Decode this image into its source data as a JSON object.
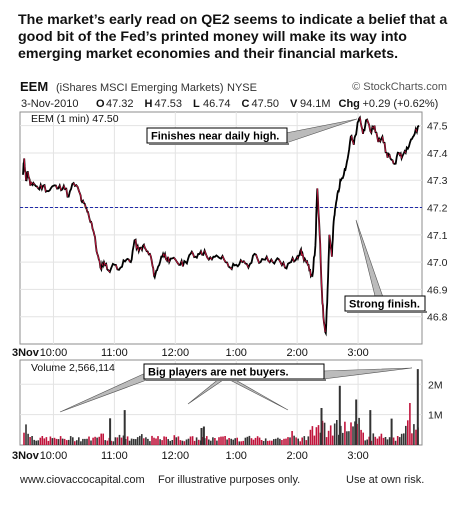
{
  "headline": "The market’s early read on QE2 seems to indicate a belief that a good bit of the Fed’s printed money will make its way into emerging market economies and their financial markets.",
  "chart_data": {
    "type": "line",
    "symbol": "EEM",
    "symbol_desc": "(iShares MSCI Emerging Markets)",
    "exchange": "NYSE",
    "watermark": "© StockCharts.com",
    "date": "3-Nov-2010",
    "ohlc": [
      {
        "k": "O",
        "v": "47.32"
      },
      {
        "k": "H",
        "v": "47.53"
      },
      {
        "k": "L",
        "v": "46.74"
      },
      {
        "k": "C",
        "v": "47.50"
      },
      {
        "k": "V",
        "v": "94.1M"
      },
      {
        "k": "Chg",
        "v": "+0.29 (+0.62%)"
      }
    ],
    "legend_label": "EEM (1 min) 47.50",
    "volume_label": "Volume 2,566,114",
    "price_ylim": [
      46.7,
      47.55
    ],
    "price_ticks": [
      "47.5",
      "47.4",
      "47.3",
      "47.2",
      "47.1",
      "47.0",
      "46.9",
      "46.8"
    ],
    "price_tick_values": [
      47.5,
      47.4,
      47.3,
      47.2,
      47.1,
      47.0,
      46.9,
      46.8
    ],
    "reference_level": 47.2,
    "volume_ticks": [
      "2M",
      "1M"
    ],
    "volume_tick_values": [
      2000000,
      1000000
    ],
    "volume_max": 2800000,
    "time_labels": [
      "3Nov",
      "10:00",
      "11:00",
      "12:00",
      "1:00",
      "2:00",
      "3:00"
    ],
    "time_label_hours": [
      9.5,
      10,
      11,
      12,
      13,
      14,
      15
    ],
    "x_range_hours": [
      9.5,
      16
    ],
    "price_path": [
      [
        9.5,
        47.32
      ],
      [
        9.52,
        47.38
      ],
      [
        9.55,
        47.3
      ],
      [
        9.58,
        47.33
      ],
      [
        9.62,
        47.28
      ],
      [
        9.67,
        47.29
      ],
      [
        9.75,
        47.27
      ],
      [
        9.83,
        47.28
      ],
      [
        9.92,
        47.26
      ],
      [
        10.0,
        47.28
      ],
      [
        10.08,
        47.27
      ],
      [
        10.17,
        47.28
      ],
      [
        10.25,
        47.24
      ],
      [
        10.33,
        47.29
      ],
      [
        10.42,
        47.26
      ],
      [
        10.47,
        47.22
      ],
      [
        10.53,
        47.2
      ],
      [
        10.58,
        47.17
      ],
      [
        10.63,
        47.14
      ],
      [
        10.67,
        47.1
      ],
      [
        10.72,
        47.03
      ],
      [
        10.77,
        46.98
      ],
      [
        10.83,
        47.0
      ],
      [
        10.9,
        46.97
      ],
      [
        11.0,
        46.99
      ],
      [
        11.1,
        46.98
      ],
      [
        11.2,
        47.01
      ],
      [
        11.27,
        47.0
      ],
      [
        11.33,
        47.08
      ],
      [
        11.4,
        47.04
      ],
      [
        11.47,
        47.06
      ],
      [
        11.53,
        47.04
      ],
      [
        11.6,
        47.02
      ],
      [
        11.65,
        46.95
      ],
      [
        11.7,
        46.97
      ],
      [
        11.77,
        47.02
      ],
      [
        11.83,
        47.03
      ],
      [
        11.9,
        47.0
      ],
      [
        12.0,
        47.01
      ],
      [
        12.08,
        46.99
      ],
      [
        12.17,
        47.0
      ],
      [
        12.25,
        47.03
      ],
      [
        12.33,
        47.02
      ],
      [
        12.42,
        47.04
      ],
      [
        12.5,
        47.03
      ],
      [
        12.6,
        47.01
      ],
      [
        12.7,
        47.02
      ],
      [
        12.8,
        47.01
      ],
      [
        12.9,
        46.98
      ],
      [
        13.0,
        46.99
      ],
      [
        13.1,
        47.0
      ],
      [
        13.2,
        46.98
      ],
      [
        13.3,
        47.03
      ],
      [
        13.4,
        47.0
      ],
      [
        13.5,
        47.02
      ],
      [
        13.6,
        47.0
      ],
      [
        13.7,
        47.01
      ],
      [
        13.8,
        46.98
      ],
      [
        13.9,
        47.0
      ],
      [
        14.0,
        47.02
      ],
      [
        14.05,
        47.04
      ],
      [
        14.1,
        47.02
      ],
      [
        14.15,
        47.0
      ],
      [
        14.2,
        46.97
      ],
      [
        14.25,
        46.95
      ],
      [
        14.3,
        47.06
      ],
      [
        14.33,
        47.27
      ],
      [
        14.37,
        47.1
      ],
      [
        14.4,
        46.92
      ],
      [
        14.43,
        46.8
      ],
      [
        14.47,
        46.74
      ],
      [
        14.5,
        46.9
      ],
      [
        14.53,
        47.1
      ],
      [
        14.57,
        47.02
      ],
      [
        14.6,
        47.15
      ],
      [
        14.63,
        47.2
      ],
      [
        14.67,
        47.26
      ],
      [
        14.72,
        47.3
      ],
      [
        14.78,
        47.34
      ],
      [
        14.83,
        47.38
      ],
      [
        14.88,
        47.46
      ],
      [
        14.93,
        47.43
      ],
      [
        14.98,
        47.49
      ],
      [
        15.03,
        47.53
      ],
      [
        15.08,
        47.47
      ],
      [
        15.13,
        47.52
      ],
      [
        15.2,
        47.48
      ],
      [
        15.27,
        47.5
      ],
      [
        15.33,
        47.44
      ],
      [
        15.4,
        47.46
      ],
      [
        15.47,
        47.4
      ],
      [
        15.53,
        47.38
      ],
      [
        15.6,
        47.36
      ],
      [
        15.67,
        47.4
      ],
      [
        15.73,
        47.39
      ],
      [
        15.8,
        47.42
      ],
      [
        15.87,
        47.45
      ],
      [
        15.93,
        47.47
      ],
      [
        16.0,
        47.5
      ]
    ],
    "volume_spikes": [
      [
        10.93,
        880000
      ],
      [
        11.17,
        1150000
      ],
      [
        12.43,
        560000
      ],
      [
        12.47,
        610000
      ],
      [
        14.4,
        1220000
      ],
      [
        14.7,
        1950000
      ],
      [
        14.97,
        1500000
      ],
      [
        15.2,
        1150000
      ],
      [
        15.55,
        870000
      ],
      [
        15.98,
        2500000
      ]
    ],
    "annotations": [
      {
        "text": "Finishes near daily high."
      },
      {
        "text": "Strong finish."
      },
      {
        "text": "Big players are net buyers."
      }
    ]
  },
  "footer": {
    "site": "www.ciovaccocapital.com",
    "note": "For illustrative purposes only.",
    "risk": "Use at own risk."
  }
}
